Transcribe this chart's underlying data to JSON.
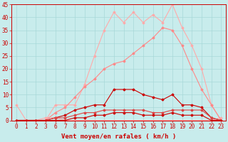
{
  "background_color": "#c8ecec",
  "grid_color": "#a8d8d8",
  "xlabel": "Vent moyen/en rafales ( km/h )",
  "xlabel_color": "#cc0000",
  "tick_color": "#cc0000",
  "xlim": [
    -0.5,
    21.5
  ],
  "ylim": [
    0,
    45
  ],
  "yticks": [
    0,
    5,
    10,
    15,
    20,
    25,
    30,
    35,
    40,
    45
  ],
  "xtick_labels": [
    "0",
    "1",
    "2",
    "3",
    "6",
    "7",
    "8",
    "9",
    "10",
    "11",
    "12",
    "13",
    "14",
    "15",
    "16",
    "17",
    "18",
    "19",
    "20",
    "21",
    "22",
    "23"
  ],
  "line1_y": [
    6,
    0,
    0,
    1,
    1,
    0,
    0,
    0,
    0,
    0,
    0,
    0,
    0,
    0,
    0,
    0,
    0,
    0,
    0,
    0,
    0,
    1
  ],
  "line2_y": [
    0,
    0,
    0,
    0,
    6,
    6,
    6,
    14,
    25,
    35,
    42,
    38,
    42,
    38,
    41,
    38,
    45,
    36,
    29,
    20,
    6,
    0
  ],
  "line3_y": [
    0,
    0,
    0,
    0,
    3,
    5,
    9,
    13,
    16,
    20,
    22,
    23,
    26,
    29,
    32,
    36,
    35,
    29,
    20,
    12,
    6,
    0
  ],
  "line4_y": [
    0,
    0,
    0,
    0,
    1,
    2,
    4,
    5,
    6,
    6,
    12,
    12,
    12,
    10,
    9,
    8,
    10,
    6,
    6,
    5,
    1,
    0
  ],
  "line5_y": [
    0,
    0,
    0,
    0,
    1,
    1,
    2,
    3,
    3,
    4,
    4,
    4,
    4,
    4,
    3,
    3,
    4,
    4,
    4,
    4,
    1,
    0
  ],
  "line6_y": [
    0,
    0,
    0,
    0,
    0,
    0,
    1,
    1,
    2,
    2,
    3,
    3,
    3,
    2,
    2,
    2,
    3,
    2,
    2,
    2,
    0,
    0
  ],
  "color_light": "#ffaaaa",
  "color_mid": "#ff8888",
  "color_dark": "#cc0000",
  "color_medium": "#dd4444"
}
